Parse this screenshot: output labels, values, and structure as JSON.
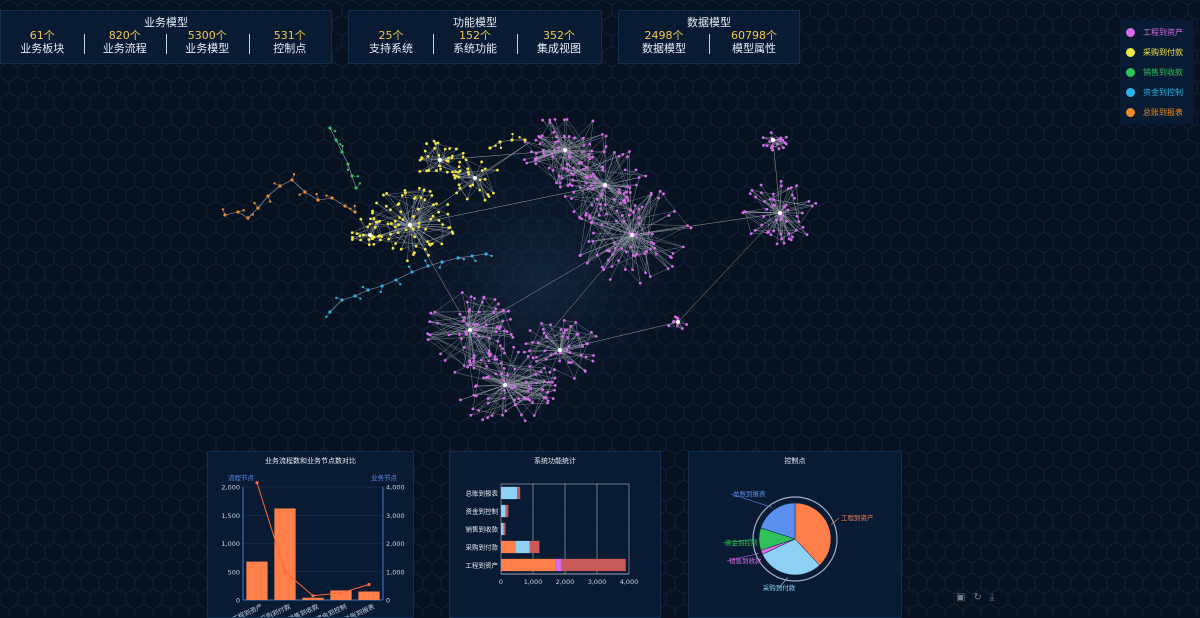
{
  "stats": [
    {
      "title": "业务模型",
      "items": [
        {
          "num": "61个",
          "label": "业务板块"
        },
        {
          "num": "820个",
          "label": "业务流程"
        },
        {
          "num": "5300个",
          "label": "业务模型"
        },
        {
          "num": "531个",
          "label": "控制点"
        }
      ]
    },
    {
      "title": "功能模型",
      "items": [
        {
          "num": "25个",
          "label": "支持系统"
        },
        {
          "num": "152个",
          "label": "系统功能"
        },
        {
          "num": "352个",
          "label": "集成视图"
        }
      ]
    },
    {
      "title": "数据模型",
      "items": [
        {
          "num": "2498个",
          "label": "数据模型"
        },
        {
          "num": "60798个",
          "label": "模型属性"
        }
      ]
    }
  ],
  "legend": [
    {
      "label": "工程到资产",
      "color": "#d66ce8"
    },
    {
      "label": "采购到付款",
      "color": "#f2e93e"
    },
    {
      "label": "销售到收款",
      "color": "#2fc25b"
    },
    {
      "label": "资金到控制",
      "color": "#2bb4e6"
    },
    {
      "label": "总账到报表",
      "color": "#f08a26"
    }
  ],
  "graph_colors": {
    "pink": "#d66ce8",
    "yellow": "#f2e93e",
    "green": "#2fc25b",
    "cyan": "#2bb4e6",
    "orange": "#f08a26",
    "link": "#c8ccd6"
  },
  "chart_data": [
    {
      "type": "bar",
      "title": "业务流程数和业务节点数对比",
      "left_axis_label": "流程节点",
      "right_axis_label": "业务节点",
      "categories": [
        "工程到资产",
        "采购到付款",
        "销售到收款",
        "资金到控制",
        "总账到报表"
      ],
      "series": [
        {
          "name": "流程节点",
          "type": "bar",
          "values": [
            680,
            1620,
            40,
            170,
            150
          ]
        },
        {
          "name": "业务节点",
          "type": "line",
          "values": [
            4150,
            1000,
            150,
            250,
            550
          ]
        }
      ],
      "left_ticks": [
        "0",
        "500",
        "1,000",
        "1,500",
        "2,000"
      ],
      "right_ticks": [
        "0",
        "1,000",
        "2,000",
        "3,000",
        "4,000"
      ],
      "ylim_left": [
        0,
        2000
      ],
      "ylim_right": [
        0,
        4000
      ],
      "colors": {
        "bar": "#ff7f4a",
        "line": "#ff6a3a"
      }
    },
    {
      "type": "bar",
      "title": "系统功能统计",
      "orientation": "horizontal",
      "categories": [
        "工程到资产",
        "采购到付款",
        "销售到收款",
        "资金到控制",
        "总账到报表"
      ],
      "x_ticks": [
        "0",
        "1,000",
        "2,000",
        "3,000",
        "4,000"
      ],
      "xlim": [
        0,
        4000
      ],
      "stacks": [
        [
          {
            "v": 1700,
            "c": "#ff7f4a"
          },
          {
            "v": 200,
            "c": "#d66ce8"
          },
          {
            "v": 2000,
            "c": "#c85a5a"
          }
        ],
        [
          {
            "v": 450,
            "c": "#ff7f4a"
          },
          {
            "v": 450,
            "c": "#8fd0f5"
          },
          {
            "v": 300,
            "c": "#c85a5a"
          }
        ],
        [
          {
            "v": 80,
            "c": "#8fd0f5"
          },
          {
            "v": 60,
            "c": "#c85a5a"
          }
        ],
        [
          {
            "v": 150,
            "c": "#8fd0f5"
          },
          {
            "v": 80,
            "c": "#c85a5a"
          }
        ],
        [
          {
            "v": 500,
            "c": "#8fd0f5"
          },
          {
            "v": 100,
            "c": "#c85a5a"
          }
        ]
      ]
    },
    {
      "type": "pie",
      "title": "控制点",
      "slices": [
        {
          "label": "工程到资产",
          "value": 38,
          "color": "#ff7f4a"
        },
        {
          "label": "采购到付款",
          "value": 30,
          "color": "#8fd0f5"
        },
        {
          "label": "销售到收款",
          "value": 2,
          "color": "#d66ce8"
        },
        {
          "label": "资金到控制",
          "value": 10,
          "color": "#2fc25b"
        },
        {
          "label": "总账到报表",
          "value": 20,
          "color": "#5b8ff0"
        }
      ]
    }
  ]
}
